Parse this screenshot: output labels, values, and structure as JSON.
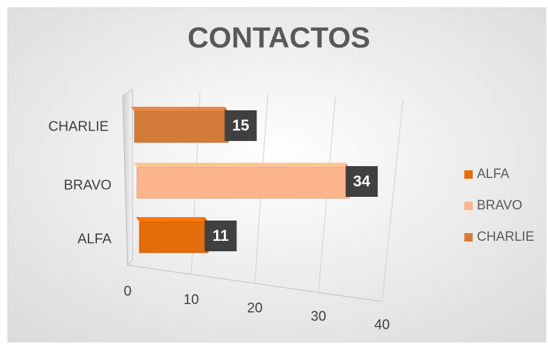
{
  "chart_data": {
    "type": "bar3d",
    "title": "CONTACTOS",
    "categories": [
      "ALFA",
      "BRAVO",
      "CHARLIE"
    ],
    "values": [
      11,
      34,
      15
    ],
    "colors": [
      "#e46c0a",
      "#fbb48b",
      "#d47b3a"
    ],
    "xlim": [
      0,
      40
    ],
    "xticks": [
      0,
      10,
      20,
      30,
      40
    ],
    "grid": true,
    "legend": "right"
  }
}
